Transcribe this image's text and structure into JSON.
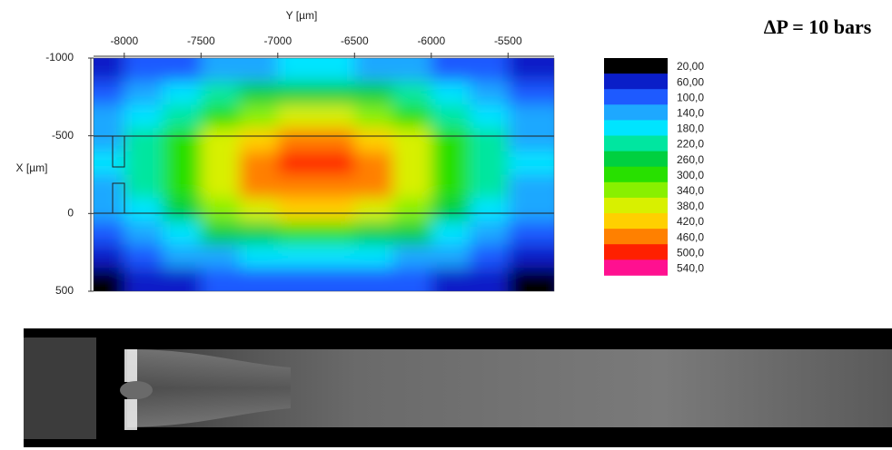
{
  "chart_data": {
    "type": "contour",
    "annotation": "ΔP = 10 bars",
    "xlabel": "Y [µm]",
    "ylabel": "X [µm]",
    "xlim": [
      -8200,
      -5200
    ],
    "xticks": [
      -8000,
      -7500,
      -7000,
      -6500,
      -6000,
      -5500
    ],
    "ylim": [
      -1000,
      500
    ],
    "yticks": [
      -1000,
      -500,
      0,
      500
    ],
    "x": [
      -8125,
      -7875,
      -7625,
      -7375,
      -7125,
      -6875,
      -6625,
      -6375,
      -6125,
      -5875,
      -5625,
      -5375
    ],
    "y": [
      -925,
      -775,
      -625,
      -475,
      -325,
      -175,
      -25,
      125,
      275,
      425
    ],
    "z": [
      [
        75,
        100,
        128,
        154,
        176,
        188,
        188,
        176,
        154,
        128,
        100,
        75
      ],
      [
        107,
        146,
        190,
        232,
        266,
        285,
        285,
        266,
        232,
        190,
        146,
        107
      ],
      [
        142,
        196,
        257,
        316,
        363,
        390,
        390,
        363,
        316,
        257,
        196,
        142
      ],
      [
        170,
        237,
        312,
        384,
        442,
        475,
        475,
        442,
        384,
        312,
        237,
        170
      ],
      [
        183,
        256,
        337,
        416,
        479,
        515,
        515,
        479,
        416,
        337,
        256,
        183
      ],
      [
        177,
        247,
        325,
        400,
        461,
        495,
        495,
        461,
        400,
        325,
        247,
        177
      ],
      [
        153,
        212,
        278,
        342,
        393,
        422,
        422,
        393,
        342,
        278,
        212,
        153
      ],
      [
        119,
        163,
        212,
        260,
        298,
        320,
        320,
        298,
        260,
        212,
        163,
        119
      ],
      [
        85,
        114,
        147,
        178,
        204,
        218,
        218,
        204,
        178,
        147,
        114,
        85
      ],
      [
        58,
        75,
        94,
        112,
        127,
        135,
        135,
        127,
        112,
        94,
        75,
        58
      ]
    ],
    "colorbar": [
      {
        "value": 20,
        "label": "20,00",
        "color": "#000000"
      },
      {
        "value": 60,
        "label": "60,00",
        "color": "#0a1ec8"
      },
      {
        "value": 100,
        "label": "100,0",
        "color": "#1e5aff"
      },
      {
        "value": 140,
        "label": "140,0",
        "color": "#1ea8ff"
      },
      {
        "value": 180,
        "label": "180,0",
        "color": "#00e4ff"
      },
      {
        "value": 220,
        "label": "220,0",
        "color": "#00e6a0"
      },
      {
        "value": 260,
        "label": "260,0",
        "color": "#00d040"
      },
      {
        "value": 300,
        "label": "300,0",
        "color": "#28e000"
      },
      {
        "value": 340,
        "label": "340,0",
        "color": "#88f000"
      },
      {
        "value": 380,
        "label": "380,0",
        "color": "#d8f000"
      },
      {
        "value": 420,
        "label": "420,0",
        "color": "#ffd000"
      },
      {
        "value": 460,
        "label": "460,0",
        "color": "#ff8000"
      },
      {
        "value": 500,
        "label": "500,0",
        "color": "#ff2000"
      },
      {
        "value": 540,
        "label": "540,0",
        "color": "#ff1090"
      }
    ]
  }
}
